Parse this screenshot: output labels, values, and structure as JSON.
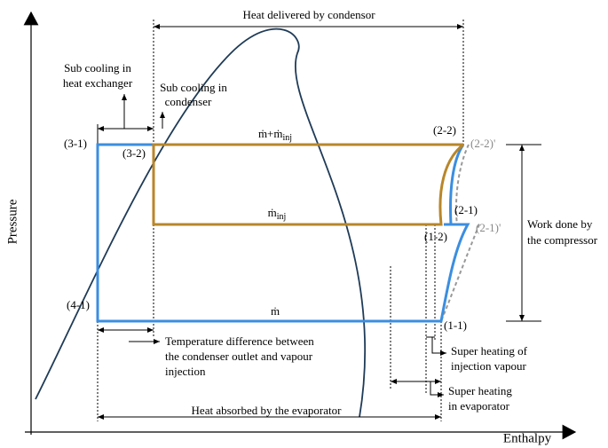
{
  "title": "Heat delivered by condensor",
  "sub_cooling_heat_exchanger": [
    "Sub cooling in",
    "heat exchanger"
  ],
  "sub_cooling_condenser": [
    "Sub cooling in",
    "condenser"
  ],
  "flow_labels": {
    "total": {
      "main": "ṁ+ṁ",
      "sub": "inj"
    },
    "injection": {
      "main": "ṁ",
      "sub": "inj"
    },
    "evaporator": {
      "main": "ṁ"
    }
  },
  "points": [
    "(3-1)",
    "(3-2)",
    "(2-2)",
    "(2-2)'",
    "(2-1)",
    "(2-1)'",
    "(1-2)",
    "(1-1)",
    "(4-1)"
  ],
  "work_done": [
    "Work done by",
    "the compressor"
  ],
  "temperature_difference": [
    "Temperature difference between",
    "the condenser outlet and vapour",
    "injection"
  ],
  "super_heating_injection": [
    "Super heating of",
    "injection vapour"
  ],
  "super_heating_evaporator": [
    "Super heating",
    "in evaporator"
  ],
  "heat_absorbed": "Heat absorbed by the evaporator",
  "y_axis": "Pressure",
  "x_axis": "Enthalpy"
}
